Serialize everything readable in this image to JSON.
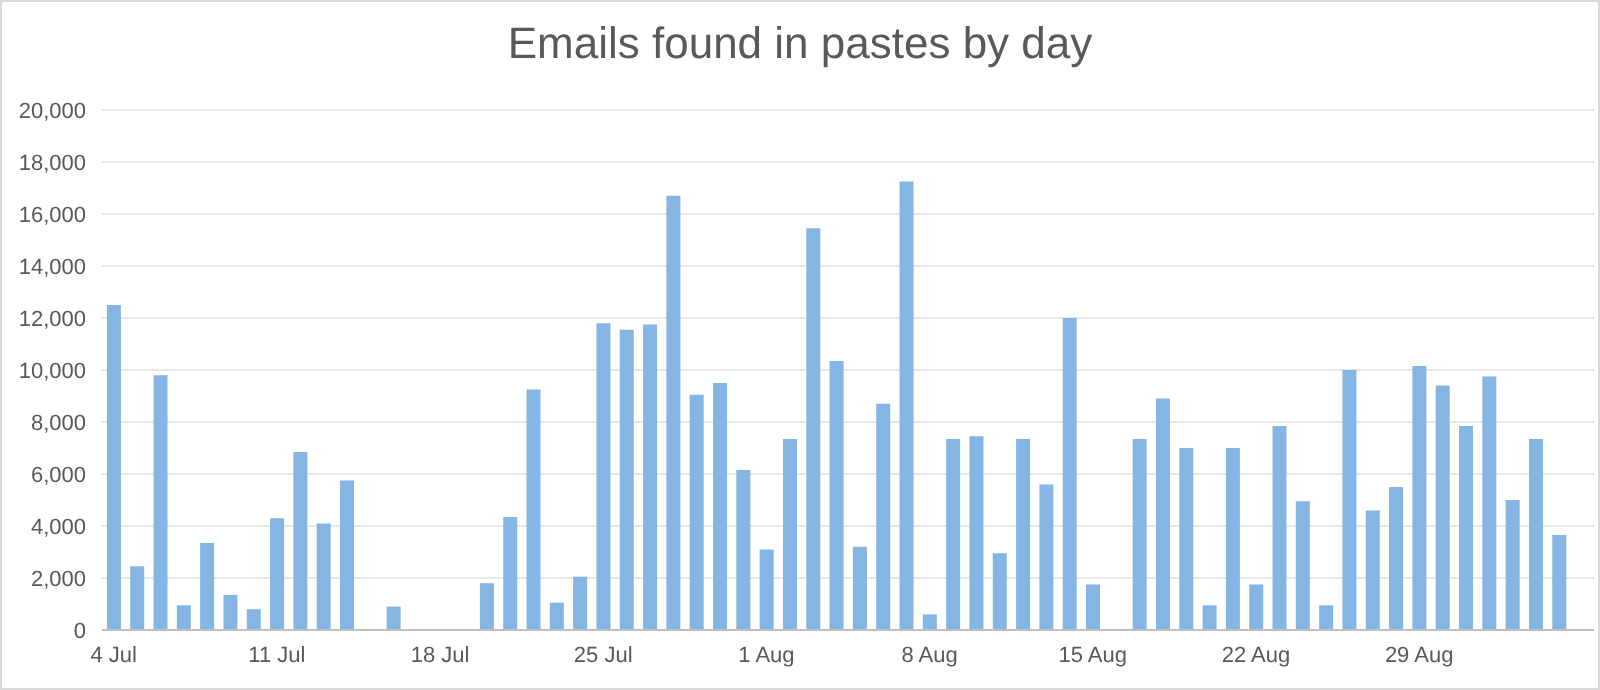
{
  "chart_data": {
    "type": "bar",
    "title": "Emails found in pastes by day",
    "categories": [
      "4 Jul",
      null,
      null,
      null,
      null,
      null,
      null,
      "11 Jul",
      null,
      null,
      null,
      null,
      null,
      null,
      "18 Jul",
      null,
      null,
      null,
      null,
      null,
      null,
      "25 Jul",
      null,
      null,
      null,
      null,
      null,
      null,
      "1 Aug",
      null,
      null,
      null,
      null,
      null,
      null,
      "8 Aug",
      null,
      null,
      null,
      null,
      null,
      null,
      "15 Aug",
      null,
      null,
      null,
      null,
      null,
      null,
      "22 Aug",
      null,
      null,
      null,
      null,
      null,
      null,
      "29 Aug",
      null,
      null,
      null,
      null,
      null,
      null,
      null
    ],
    "values": [
      12500,
      2450,
      9800,
      950,
      3350,
      1350,
      800,
      4300,
      6850,
      4100,
      5750,
      0,
      900,
      0,
      0,
      0,
      1800,
      4350,
      9250,
      1050,
      2050,
      11800,
      11550,
      11750,
      16700,
      9050,
      9500,
      6150,
      3100,
      7350,
      15450,
      10350,
      3200,
      8700,
      17250,
      600,
      7350,
      7450,
      2950,
      7350,
      5600,
      12000,
      1750,
      0,
      7350,
      8900,
      7000,
      950,
      7000,
      1750,
      7850,
      4950,
      950,
      10000,
      4600,
      5500,
      10150,
      9400,
      7850,
      9750,
      5000,
      7350,
      3650,
      0
    ],
    "color": "#85b5e2",
    "ylim": [
      0,
      20000
    ],
    "yticks": [
      0,
      {
        "value": 2000,
        "label": "2,000"
      },
      {
        "value": 4000,
        "label": "4,000"
      },
      {
        "value": 6000,
        "label": "6,000"
      },
      {
        "value": 8000,
        "label": "8,000"
      },
      {
        "value": 10000,
        "label": "10,000"
      },
      {
        "value": 12000,
        "label": "12,000"
      },
      {
        "value": 14000,
        "label": "14,000"
      },
      {
        "value": 16000,
        "label": "16,000"
      },
      {
        "value": 18000,
        "label": "18,000"
      },
      {
        "value": 20000,
        "label": "20,000"
      }
    ],
    "grid": "y"
  }
}
